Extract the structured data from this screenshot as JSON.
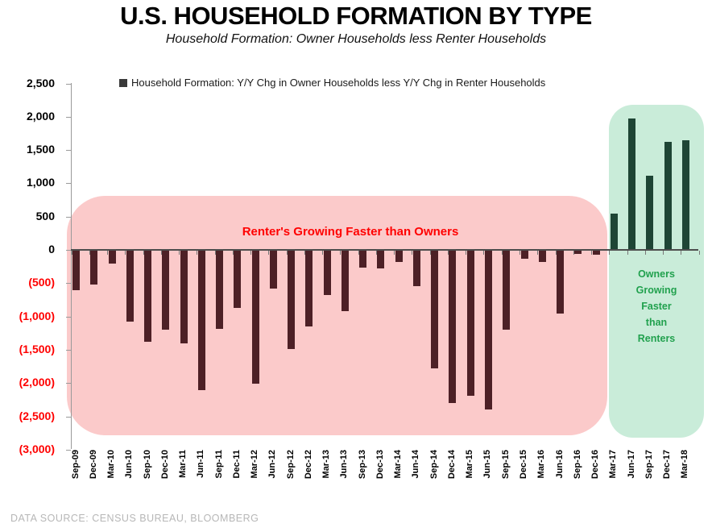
{
  "header": {
    "title": "U.S. HOUSEHOLD FORMATION BY TYPE",
    "subtitle": "Household Formation: Owner Households less Renter Households"
  },
  "legend": {
    "label": "Household Formation: Y/Y Chg in Owner Households less Y/Y Chg in Renter Households"
  },
  "annotations": {
    "renters_text": "Renter's Growing Faster than Owners",
    "owners_lines": [
      "Owners",
      "Growing",
      "Faster",
      "than",
      "Renters"
    ]
  },
  "footer": {
    "source": "DATA SOURCE: CENSUS BUREAU, BLOOMBERG"
  },
  "colors": {
    "negative_bar": "#4d2026",
    "positive_bar": "#1e4535",
    "pink_region": "#fbcaca",
    "green_region": "#c9ecd9",
    "red_text": "#ff0000",
    "green_text": "#21a14e",
    "negative_axis_label": "#ff0000",
    "positive_axis_label": "#000000"
  },
  "chart_data": {
    "type": "bar",
    "title": "U.S. HOUSEHOLD FORMATION BY TYPE",
    "subtitle": "Household Formation: Owner Households less Renter Households",
    "legend_entries": [
      "Household Formation: Y/Y Chg in Owner Households less Y/Y Chg in Renter Households"
    ],
    "legend_position": "top",
    "grid": false,
    "xlabel": "",
    "ylabel": "",
    "ylim": [
      -3000,
      2500
    ],
    "ytick_step": 500,
    "y_ticks": [
      {
        "v": 2500,
        "label": "2,500"
      },
      {
        "v": 2000,
        "label": "2,000"
      },
      {
        "v": 1500,
        "label": "1,500"
      },
      {
        "v": 1000,
        "label": "1,000"
      },
      {
        "v": 500,
        "label": "500"
      },
      {
        "v": 0,
        "label": "0"
      },
      {
        "v": -500,
        "label": "(500)"
      },
      {
        "v": -1000,
        "label": "(1,000)"
      },
      {
        "v": -1500,
        "label": "(1,500)"
      },
      {
        "v": -2000,
        "label": "(2,000)"
      },
      {
        "v": -2500,
        "label": "(2,500)"
      },
      {
        "v": -3000,
        "label": "(3,000)"
      }
    ],
    "categories": [
      "Sep-09",
      "Dec-09",
      "Mar-10",
      "Jun-10",
      "Sep-10",
      "Dec-10",
      "Mar-11",
      "Jun-11",
      "Sep-11",
      "Dec-11",
      "Mar-12",
      "Jun-12",
      "Sep-12",
      "Dec-12",
      "Mar-13",
      "Jun-13",
      "Sep-13",
      "Dec-13",
      "Mar-14",
      "Jun-14",
      "Sep-14",
      "Dec-14",
      "Mar-15",
      "Jun-15",
      "Sep-15",
      "Dec-15",
      "Mar-16",
      "Jun-16",
      "Sep-16",
      "Dec-16",
      "Mar-17",
      "Jun-17",
      "Sep-17",
      "Dec-17",
      "Mar-18"
    ],
    "values": [
      -590,
      -510,
      -190,
      -1060,
      -1370,
      -1190,
      -1390,
      -2090,
      -1180,
      -860,
      -2000,
      -570,
      -1480,
      -1140,
      -670,
      -910,
      -260,
      -270,
      -170,
      -530,
      -1770,
      -2290,
      -2180,
      -2380,
      -1190,
      -120,
      -170,
      -950,
      -50,
      -60,
      540,
      1970,
      1110,
      1620,
      1650
    ],
    "annotations": [
      {
        "text": "Renter's Growing Faster than Owners",
        "region": "negative",
        "color": "#ff0000"
      },
      {
        "text": "Owners Growing Faster than Renters",
        "region": "positive",
        "color": "#21a14e"
      }
    ]
  }
}
